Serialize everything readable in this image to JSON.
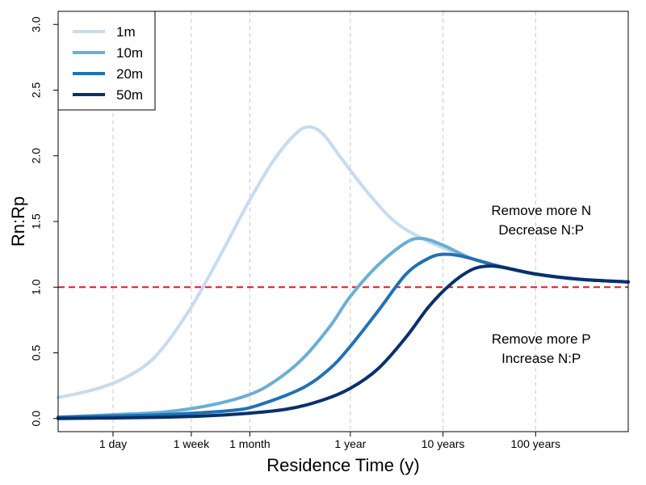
{
  "chart_data": {
    "type": "line",
    "xlabel": "Residence Time (y)",
    "ylabel": "Rn:Rp",
    "x_scale": "log",
    "xlim_years": [
      0.0007,
      1000
    ],
    "ylim": [
      -0.1,
      3.1
    ],
    "y_ticks": [
      0.0,
      0.5,
      1.0,
      1.5,
      2.0,
      2.5,
      3.0
    ],
    "y_tick_labels": [
      "0.0",
      "0.5",
      "1.0",
      "1.5",
      "2.0",
      "2.5",
      "3.0"
    ],
    "x_ticks": [
      {
        "value": 0.00274,
        "label": "1 day"
      },
      {
        "value": 0.01918,
        "label": "1 week"
      },
      {
        "value": 0.0822,
        "label": "1 month"
      },
      {
        "value": 1,
        "label": "1 year"
      },
      {
        "value": 10,
        "label": "10 years"
      },
      {
        "value": 100,
        "label": "100 years"
      }
    ],
    "vertical_gridlines": true,
    "reference_line": {
      "y": 1.0,
      "color": "#dd1c1c",
      "style": "dashed"
    },
    "legend_position": "top-left",
    "series": [
      {
        "name": "1m",
        "color": "#c6dbef",
        "points": [
          [
            0.0007,
            0.16
          ],
          [
            0.0015,
            0.21
          ],
          [
            0.003,
            0.28
          ],
          [
            0.006,
            0.4
          ],
          [
            0.01,
            0.56
          ],
          [
            0.02,
            0.87
          ],
          [
            0.04,
            1.25
          ],
          [
            0.08,
            1.65
          ],
          [
            0.15,
            1.97
          ],
          [
            0.25,
            2.16
          ],
          [
            0.35,
            2.22
          ],
          [
            0.5,
            2.17
          ],
          [
            0.8,
            1.98
          ],
          [
            1.5,
            1.73
          ],
          [
            3,
            1.5
          ],
          [
            6,
            1.37
          ],
          [
            10,
            1.3
          ],
          [
            20,
            1.22
          ],
          [
            40,
            1.16
          ],
          [
            100,
            1.1
          ],
          [
            300,
            1.06
          ],
          [
            1000,
            1.04
          ]
        ]
      },
      {
        "name": "10m",
        "color": "#6baed6",
        "points": [
          [
            0.0007,
            0.01
          ],
          [
            0.003,
            0.03
          ],
          [
            0.01,
            0.05
          ],
          [
            0.03,
            0.1
          ],
          [
            0.08,
            0.18
          ],
          [
            0.15,
            0.28
          ],
          [
            0.3,
            0.45
          ],
          [
            0.6,
            0.7
          ],
          [
            1,
            0.93
          ],
          [
            2,
            1.17
          ],
          [
            4,
            1.34
          ],
          [
            6,
            1.37
          ],
          [
            10,
            1.32
          ],
          [
            20,
            1.22
          ],
          [
            40,
            1.16
          ],
          [
            100,
            1.1
          ],
          [
            300,
            1.06
          ],
          [
            1000,
            1.04
          ]
        ]
      },
      {
        "name": "20m",
        "color": "#2171b5",
        "points": [
          [
            0.0007,
            0.01
          ],
          [
            0.003,
            0.02
          ],
          [
            0.01,
            0.03
          ],
          [
            0.05,
            0.06
          ],
          [
            0.1,
            0.1
          ],
          [
            0.3,
            0.23
          ],
          [
            0.6,
            0.38
          ],
          [
            1,
            0.55
          ],
          [
            2,
            0.82
          ],
          [
            4,
            1.1
          ],
          [
            7,
            1.22
          ],
          [
            10,
            1.25
          ],
          [
            15,
            1.24
          ],
          [
            25,
            1.2
          ],
          [
            40,
            1.16
          ],
          [
            100,
            1.1
          ],
          [
            300,
            1.06
          ],
          [
            1000,
            1.04
          ]
        ]
      },
      {
        "name": "50m",
        "color": "#08306b",
        "points": [
          [
            0.0007,
            0.0
          ],
          [
            0.01,
            0.01
          ],
          [
            0.05,
            0.03
          ],
          [
            0.2,
            0.07
          ],
          [
            0.5,
            0.14
          ],
          [
            1,
            0.23
          ],
          [
            2,
            0.38
          ],
          [
            4,
            0.62
          ],
          [
            7,
            0.85
          ],
          [
            12,
            1.02
          ],
          [
            20,
            1.13
          ],
          [
            30,
            1.16
          ],
          [
            45,
            1.15
          ],
          [
            100,
            1.1
          ],
          [
            300,
            1.06
          ],
          [
            1000,
            1.04
          ]
        ]
      }
    ],
    "annotations": [
      {
        "lines": [
          "Remove more N",
          "Decrease N:P"
        ],
        "x": 115,
        "y": 1.55
      },
      {
        "lines": [
          "Remove more P",
          "Increase N:P"
        ],
        "x": 115,
        "y": 0.57
      }
    ]
  }
}
